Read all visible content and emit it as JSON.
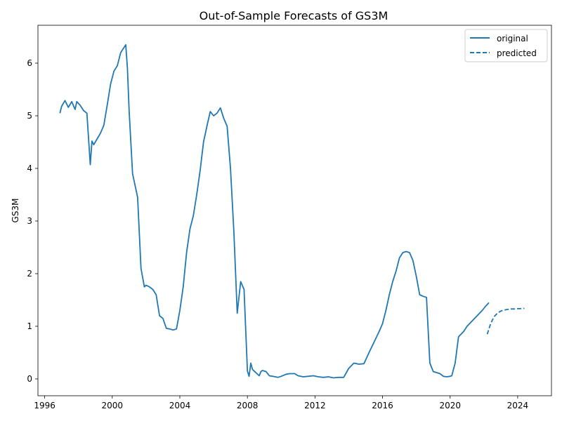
{
  "chart_data": {
    "type": "line",
    "title": "Out-of-Sample Forecasts of GS3M",
    "xlabel": "",
    "ylabel": "GS3M",
    "xlim": [
      1995.6,
      2026.0
    ],
    "ylim": [
      -0.32,
      6.72
    ],
    "xticks": [
      1996,
      2000,
      2004,
      2008,
      2012,
      2016,
      2020,
      2024
    ],
    "yticks": [
      0,
      1,
      2,
      3,
      4,
      5,
      6
    ],
    "grid": false,
    "legend": {
      "position": "top-right",
      "entries": [
        "original",
        "predicted"
      ]
    },
    "series": [
      {
        "name": "original",
        "style": "solid",
        "color": "#1f77b4",
        "x": [
          1996.9,
          1997.0,
          1997.2,
          1997.4,
          1997.6,
          1997.8,
          1997.9,
          1998.1,
          1998.3,
          1998.5,
          1998.7,
          1998.8,
          1998.9,
          1999.1,
          1999.3,
          1999.5,
          1999.7,
          1999.9,
          2000.1,
          2000.3,
          2000.5,
          2000.6,
          2000.8,
          2000.9,
          2001.0,
          2001.2,
          2001.4,
          2001.5,
          2001.7,
          2001.9,
          2002.0,
          2002.2,
          2002.4,
          2002.6,
          2002.8,
          2003.0,
          2003.2,
          2003.4,
          2003.6,
          2003.8,
          2004.0,
          2004.2,
          2004.4,
          2004.6,
          2004.8,
          2005.0,
          2005.2,
          2005.4,
          2005.6,
          2005.8,
          2006.0,
          2006.2,
          2006.4,
          2006.6,
          2006.8,
          2007.0,
          2007.2,
          2007.4,
          2007.6,
          2007.8,
          2008.0,
          2008.1,
          2008.2,
          2008.3,
          2008.4,
          2008.5,
          2008.7,
          2008.8,
          2008.9,
          2009.0,
          2009.1,
          2009.3,
          2009.5,
          2009.8,
          2010.0,
          2010.3,
          2010.5,
          2010.8,
          2011.0,
          2011.3,
          2011.6,
          2011.9,
          2012.2,
          2012.5,
          2012.8,
          2013.1,
          2013.4,
          2013.7,
          2014.0,
          2014.3,
          2014.6,
          2014.9,
          2015.2,
          2015.5,
          2015.8,
          2016.0,
          2016.2,
          2016.4,
          2016.6,
          2016.8,
          2017.0,
          2017.2,
          2017.4,
          2017.6,
          2017.8,
          2018.0,
          2018.2,
          2018.4,
          2018.6,
          2018.8,
          2019.0,
          2019.2,
          2019.4,
          2019.6,
          2019.8,
          2020.0,
          2020.1,
          2020.3,
          2020.5,
          2020.8,
          2021.0,
          2021.3,
          2021.6,
          2021.9,
          2022.1,
          2022.3
        ],
        "values": [
          5.05,
          5.18,
          5.29,
          5.16,
          5.27,
          5.12,
          5.27,
          5.2,
          5.1,
          5.05,
          4.07,
          4.52,
          4.45,
          4.56,
          4.67,
          4.82,
          5.2,
          5.6,
          5.85,
          5.95,
          6.2,
          6.25,
          6.35,
          5.9,
          5.1,
          3.9,
          3.6,
          3.45,
          2.1,
          1.75,
          1.78,
          1.75,
          1.7,
          1.6,
          1.2,
          1.15,
          0.96,
          0.95,
          0.93,
          0.95,
          1.3,
          1.75,
          2.4,
          2.85,
          3.1,
          3.5,
          3.95,
          4.5,
          4.8,
          5.08,
          5.0,
          5.05,
          5.15,
          4.95,
          4.8,
          4.0,
          2.8,
          1.25,
          1.85,
          1.7,
          0.15,
          0.05,
          0.3,
          0.18,
          0.15,
          0.12,
          0.06,
          0.14,
          0.16,
          0.15,
          0.14,
          0.06,
          0.05,
          0.03,
          0.05,
          0.09,
          0.1,
          0.1,
          0.06,
          0.04,
          0.05,
          0.06,
          0.04,
          0.03,
          0.04,
          0.02,
          0.03,
          0.03,
          0.2,
          0.3,
          0.28,
          0.29,
          0.5,
          0.7,
          0.9,
          1.05,
          1.3,
          1.6,
          1.85,
          2.05,
          2.3,
          2.4,
          2.42,
          2.4,
          2.25,
          1.95,
          1.6,
          1.57,
          1.55,
          0.3,
          0.14,
          0.12,
          0.1,
          0.05,
          0.04,
          0.05,
          0.06,
          0.3,
          0.8,
          0.9,
          1.0,
          1.1,
          1.2,
          1.3,
          1.38,
          1.45
        ],
        "note_values_shape": "original series shown as solid line up to 2022.3"
      },
      {
        "name": "predicted",
        "style": "dashed",
        "color": "#1f77b4",
        "x": [
          2022.2,
          2022.4,
          2022.6,
          2022.8,
          2023.0,
          2023.2,
          2023.4,
          2023.6,
          2023.8,
          2024.0,
          2024.2,
          2024.4
        ],
        "values": [
          0.85,
          1.05,
          1.18,
          1.25,
          1.29,
          1.31,
          1.32,
          1.33,
          1.33,
          1.335,
          1.335,
          1.34
        ]
      }
    ]
  }
}
